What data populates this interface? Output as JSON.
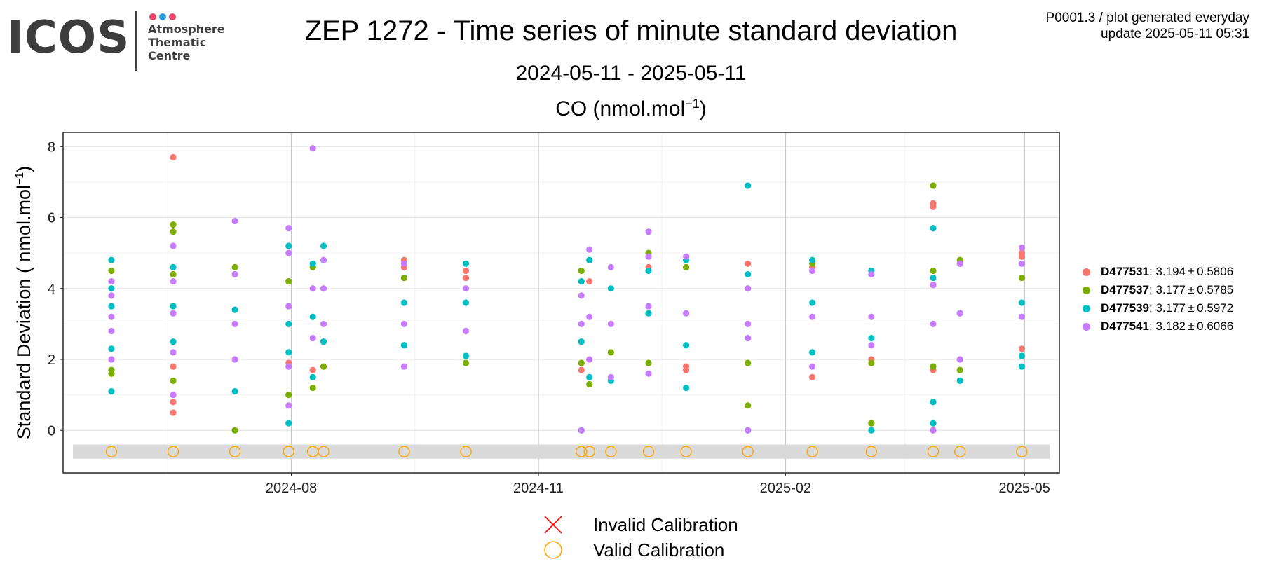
{
  "logo": {
    "wordmark": "ICOS",
    "lines": [
      "Atmosphere",
      "Thematic",
      "Centre"
    ],
    "dot_colors": [
      "#e8446e",
      "#2a9ce0",
      "#e8446e"
    ]
  },
  "header": {
    "title": "ZEP 1272 - Time series of minute standard deviation",
    "subtitle": "2024-05-11 - 2025-05-11",
    "meta_line1": "P0001.3 / plot generated everyday",
    "meta_line2": "update  2025-05-11 05:31"
  },
  "panel": {
    "title": "CO (nmol.mol",
    "title_sup": "−1",
    "title_end": ")"
  },
  "legend_bottom": {
    "invalid_label": "Invalid Calibration",
    "valid_label": "Valid Calibration",
    "invalid_color": "#ff0000",
    "valid_color": "#ffa500"
  },
  "legend_side": [
    {
      "id": "D477531",
      "stat": "3.194 ± 0.5806",
      "color": "#f8766d"
    },
    {
      "id": "D477537",
      "stat": "3.177 ± 0.5785",
      "color": "#7cae00"
    },
    {
      "id": "D477539",
      "stat": "3.177 ± 0.5972",
      "color": "#00bfc4"
    },
    {
      "id": "D477541",
      "stat": "3.182 ± 0.6066",
      "color": "#c77cff"
    }
  ],
  "chart_data": {
    "type": "scatter",
    "x_type": "date",
    "xlim": [
      "2024-05-11",
      "2025-05-11"
    ],
    "ylim": [
      -1.2,
      8.4
    ],
    "x_ticks": [
      "2024-08-01",
      "2024-11-01",
      "2025-02-01",
      "2025-05-01"
    ],
    "x_tick_labels": [
      "2024-08",
      "2024-11",
      "2025-02",
      "2025-05"
    ],
    "y_ticks": [
      0,
      2,
      4,
      6,
      8
    ],
    "y_tick_labels": [
      "0",
      "2",
      "4",
      "6",
      "8"
    ],
    "ylabel": "Standard Deviation ( nmol.mol",
    "ylabel_sup": "−1",
    "ylabel_end": ")",
    "grid": true,
    "calibration_band": [
      -0.8,
      -0.4
    ],
    "series": [
      {
        "name": "D477531",
        "color": "#f8766d",
        "points": [
          {
            "x": "2024-06-18",
            "y": 7.7
          },
          {
            "x": "2024-06-18",
            "y": 1.8
          },
          {
            "x": "2024-06-18",
            "y": 0.8
          },
          {
            "x": "2024-06-18",
            "y": 0.5
          },
          {
            "x": "2024-07-31",
            "y": 1.9
          },
          {
            "x": "2024-08-09",
            "y": 1.7
          },
          {
            "x": "2024-09-12",
            "y": 4.8
          },
          {
            "x": "2024-09-12",
            "y": 4.6
          },
          {
            "x": "2024-10-05",
            "y": 4.5
          },
          {
            "x": "2024-10-05",
            "y": 4.3
          },
          {
            "x": "2024-11-17",
            "y": 1.7
          },
          {
            "x": "2024-11-20",
            "y": 4.2
          },
          {
            "x": "2024-12-12",
            "y": 4.6
          },
          {
            "x": "2024-12-26",
            "y": 1.8
          },
          {
            "x": "2024-12-26",
            "y": 1.7
          },
          {
            "x": "2025-01-18",
            "y": 4.7
          },
          {
            "x": "2025-02-11",
            "y": 1.5
          },
          {
            "x": "2025-02-11",
            "y": 4.6
          },
          {
            "x": "2025-03-05",
            "y": 2.0
          },
          {
            "x": "2025-03-28",
            "y": 6.4
          },
          {
            "x": "2025-03-28",
            "y": 6.3
          },
          {
            "x": "2025-03-28",
            "y": 1.7
          },
          {
            "x": "2025-04-07",
            "y": 4.7
          },
          {
            "x": "2025-04-30",
            "y": 5.0
          },
          {
            "x": "2025-04-30",
            "y": 4.9
          },
          {
            "x": "2025-04-30",
            "y": 2.3
          }
        ]
      },
      {
        "name": "D477537",
        "color": "#7cae00",
        "points": [
          {
            "x": "2024-05-26",
            "y": 4.5
          },
          {
            "x": "2024-05-26",
            "y": 1.7
          },
          {
            "x": "2024-05-26",
            "y": 1.6
          },
          {
            "x": "2024-06-18",
            "y": 5.8
          },
          {
            "x": "2024-06-18",
            "y": 5.6
          },
          {
            "x": "2024-06-18",
            "y": 4.4
          },
          {
            "x": "2024-06-18",
            "y": 1.4
          },
          {
            "x": "2024-07-11",
            "y": 4.6
          },
          {
            "x": "2024-07-11",
            "y": 0.0
          },
          {
            "x": "2024-07-31",
            "y": 1.0
          },
          {
            "x": "2024-07-31",
            "y": 4.2
          },
          {
            "x": "2024-08-09",
            "y": 1.2
          },
          {
            "x": "2024-08-09",
            "y": 4.6
          },
          {
            "x": "2024-08-13",
            "y": 1.8
          },
          {
            "x": "2024-09-12",
            "y": 4.3
          },
          {
            "x": "2024-10-05",
            "y": 1.9
          },
          {
            "x": "2024-11-17",
            "y": 4.5
          },
          {
            "x": "2024-11-17",
            "y": 1.9
          },
          {
            "x": "2024-11-20",
            "y": 1.3
          },
          {
            "x": "2024-11-28",
            "y": 2.2
          },
          {
            "x": "2024-12-12",
            "y": 5.0
          },
          {
            "x": "2024-12-12",
            "y": 1.9
          },
          {
            "x": "2024-12-26",
            "y": 4.6
          },
          {
            "x": "2025-01-18",
            "y": 0.7
          },
          {
            "x": "2025-01-18",
            "y": 1.9
          },
          {
            "x": "2025-02-11",
            "y": 4.7
          },
          {
            "x": "2025-03-05",
            "y": 0.2
          },
          {
            "x": "2025-03-05",
            "y": 1.9
          },
          {
            "x": "2025-03-28",
            "y": 6.9
          },
          {
            "x": "2025-03-28",
            "y": 4.5
          },
          {
            "x": "2025-03-28",
            "y": 1.8
          },
          {
            "x": "2025-04-07",
            "y": 4.8
          },
          {
            "x": "2025-04-07",
            "y": 1.7
          },
          {
            "x": "2025-04-30",
            "y": 4.3
          }
        ]
      },
      {
        "name": "D477539",
        "color": "#00bfc4",
        "points": [
          {
            "x": "2024-05-26",
            "y": 4.8
          },
          {
            "x": "2024-05-26",
            "y": 4.0
          },
          {
            "x": "2024-05-26",
            "y": 3.5
          },
          {
            "x": "2024-05-26",
            "y": 2.3
          },
          {
            "x": "2024-05-26",
            "y": 1.1
          },
          {
            "x": "2024-06-18",
            "y": 4.6
          },
          {
            "x": "2024-06-18",
            "y": 3.5
          },
          {
            "x": "2024-06-18",
            "y": 2.5
          },
          {
            "x": "2024-07-11",
            "y": 1.1
          },
          {
            "x": "2024-07-11",
            "y": 3.4
          },
          {
            "x": "2024-07-31",
            "y": 5.2
          },
          {
            "x": "2024-07-31",
            "y": 3.0
          },
          {
            "x": "2024-07-31",
            "y": 2.2
          },
          {
            "x": "2024-07-31",
            "y": 0.2
          },
          {
            "x": "2024-08-09",
            "y": 4.7
          },
          {
            "x": "2024-08-09",
            "y": 1.5
          },
          {
            "x": "2024-08-09",
            "y": 3.2
          },
          {
            "x": "2024-08-13",
            "y": 5.2
          },
          {
            "x": "2024-08-13",
            "y": 2.5
          },
          {
            "x": "2024-09-12",
            "y": 3.6
          },
          {
            "x": "2024-09-12",
            "y": 2.4
          },
          {
            "x": "2024-10-05",
            "y": 4.7
          },
          {
            "x": "2024-10-05",
            "y": 3.6
          },
          {
            "x": "2024-10-05",
            "y": 2.1
          },
          {
            "x": "2024-11-17",
            "y": 4.2
          },
          {
            "x": "2024-11-17",
            "y": 2.5
          },
          {
            "x": "2024-11-17",
            "y": 0.0
          },
          {
            "x": "2024-11-20",
            "y": 4.8
          },
          {
            "x": "2024-11-20",
            "y": 1.5
          },
          {
            "x": "2024-11-28",
            "y": 1.4
          },
          {
            "x": "2024-11-28",
            "y": 4.0
          },
          {
            "x": "2024-12-12",
            "y": 4.5
          },
          {
            "x": "2024-12-12",
            "y": 3.3
          },
          {
            "x": "2024-12-26",
            "y": 1.2
          },
          {
            "x": "2024-12-26",
            "y": 4.8
          },
          {
            "x": "2024-12-26",
            "y": 2.4
          },
          {
            "x": "2025-01-18",
            "y": 6.9
          },
          {
            "x": "2025-01-18",
            "y": 4.4
          },
          {
            "x": "2025-01-18",
            "y": 0.0
          },
          {
            "x": "2025-02-11",
            "y": 4.8
          },
          {
            "x": "2025-02-11",
            "y": 3.6
          },
          {
            "x": "2025-02-11",
            "y": 2.2
          },
          {
            "x": "2025-03-05",
            "y": 4.5
          },
          {
            "x": "2025-03-05",
            "y": 0.0
          },
          {
            "x": "2025-03-05",
            "y": 2.6
          },
          {
            "x": "2025-03-28",
            "y": 5.7
          },
          {
            "x": "2025-03-28",
            "y": 4.3
          },
          {
            "x": "2025-03-28",
            "y": 0.8
          },
          {
            "x": "2025-03-28",
            "y": 0.2
          },
          {
            "x": "2025-04-07",
            "y": 1.4
          },
          {
            "x": "2025-04-07",
            "y": 3.3
          },
          {
            "x": "2025-04-30",
            "y": 1.8
          },
          {
            "x": "2025-04-30",
            "y": 2.1
          },
          {
            "x": "2025-04-30",
            "y": 3.6
          }
        ]
      },
      {
        "name": "D477541",
        "color": "#c77cff",
        "points": [
          {
            "x": "2024-05-26",
            "y": 4.2
          },
          {
            "x": "2024-05-26",
            "y": 3.8
          },
          {
            "x": "2024-05-26",
            "y": 3.2
          },
          {
            "x": "2024-05-26",
            "y": 2.8
          },
          {
            "x": "2024-05-26",
            "y": 2.0
          },
          {
            "x": "2024-06-18",
            "y": 5.2
          },
          {
            "x": "2024-06-18",
            "y": 4.2
          },
          {
            "x": "2024-06-18",
            "y": 3.3
          },
          {
            "x": "2024-06-18",
            "y": 2.2
          },
          {
            "x": "2024-06-18",
            "y": 1.0
          },
          {
            "x": "2024-07-11",
            "y": 5.9
          },
          {
            "x": "2024-07-11",
            "y": 4.4
          },
          {
            "x": "2024-07-11",
            "y": 3.0
          },
          {
            "x": "2024-07-11",
            "y": 2.0
          },
          {
            "x": "2024-07-31",
            "y": 5.7
          },
          {
            "x": "2024-07-31",
            "y": 5.0
          },
          {
            "x": "2024-07-31",
            "y": 3.5
          },
          {
            "x": "2024-07-31",
            "y": 1.8
          },
          {
            "x": "2024-07-31",
            "y": 0.7
          },
          {
            "x": "2024-08-09",
            "y": 7.95
          },
          {
            "x": "2024-08-09",
            "y": 4.0
          },
          {
            "x": "2024-08-09",
            "y": 2.6
          },
          {
            "x": "2024-08-13",
            "y": 4.8
          },
          {
            "x": "2024-08-13",
            "y": 4.0
          },
          {
            "x": "2024-08-13",
            "y": 3.0
          },
          {
            "x": "2024-09-12",
            "y": 4.7
          },
          {
            "x": "2024-09-12",
            "y": 3.0
          },
          {
            "x": "2024-09-12",
            "y": 1.8
          },
          {
            "x": "2024-10-05",
            "y": 4.0
          },
          {
            "x": "2024-10-05",
            "y": 2.8
          },
          {
            "x": "2024-11-17",
            "y": 3.8
          },
          {
            "x": "2024-11-17",
            "y": 3.0
          },
          {
            "x": "2024-11-17",
            "y": 0.0
          },
          {
            "x": "2024-11-20",
            "y": 5.1
          },
          {
            "x": "2024-11-20",
            "y": 3.2
          },
          {
            "x": "2024-11-20",
            "y": 2.0
          },
          {
            "x": "2024-11-28",
            "y": 4.6
          },
          {
            "x": "2024-11-28",
            "y": 3.0
          },
          {
            "x": "2024-11-28",
            "y": 1.5
          },
          {
            "x": "2024-12-12",
            "y": 5.6
          },
          {
            "x": "2024-12-12",
            "y": 4.9
          },
          {
            "x": "2024-12-12",
            "y": 3.5
          },
          {
            "x": "2024-12-12",
            "y": 1.6
          },
          {
            "x": "2024-12-26",
            "y": 4.9
          },
          {
            "x": "2024-12-26",
            "y": 3.3
          },
          {
            "x": "2025-01-18",
            "y": 4.0
          },
          {
            "x": "2025-01-18",
            "y": 3.0
          },
          {
            "x": "2025-01-18",
            "y": 2.6
          },
          {
            "x": "2025-01-18",
            "y": 0.0
          },
          {
            "x": "2025-02-11",
            "y": 4.5
          },
          {
            "x": "2025-02-11",
            "y": 3.2
          },
          {
            "x": "2025-02-11",
            "y": 1.8
          },
          {
            "x": "2025-03-05",
            "y": 4.4
          },
          {
            "x": "2025-03-05",
            "y": 3.2
          },
          {
            "x": "2025-03-05",
            "y": 2.4
          },
          {
            "x": "2025-03-28",
            "y": 4.1
          },
          {
            "x": "2025-03-28",
            "y": 3.0
          },
          {
            "x": "2025-03-28",
            "y": 0.0
          },
          {
            "x": "2025-04-07",
            "y": 4.7
          },
          {
            "x": "2025-04-07",
            "y": 3.3
          },
          {
            "x": "2025-04-07",
            "y": 2.0
          },
          {
            "x": "2025-04-30",
            "y": 5.15
          },
          {
            "x": "2025-04-30",
            "y": 4.7
          },
          {
            "x": "2025-04-30",
            "y": 3.2
          }
        ]
      }
    ],
    "calibrations": {
      "valid": [
        "2024-05-26",
        "2024-06-18",
        "2024-07-11",
        "2024-07-31",
        "2024-08-09",
        "2024-08-13",
        "2024-09-12",
        "2024-10-05",
        "2024-11-17",
        "2024-11-20",
        "2024-11-28",
        "2024-12-12",
        "2024-12-26",
        "2025-01-18",
        "2025-02-11",
        "2025-03-05",
        "2025-03-28",
        "2025-04-07",
        "2025-04-30"
      ],
      "invalid": []
    }
  }
}
